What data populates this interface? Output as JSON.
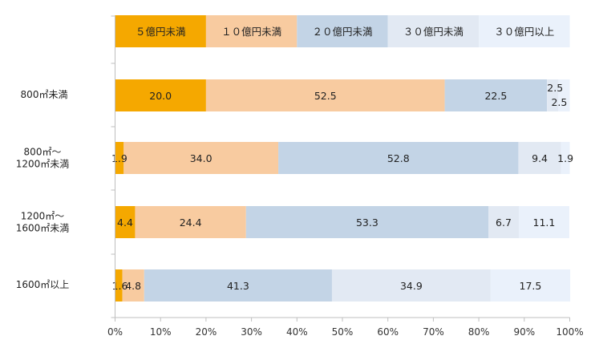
{
  "chart_data": {
    "type": "bar",
    "orientation": "horizontal",
    "stacked": true,
    "categories": [
      "800㎡未満",
      "800㎡～\n1200㎡未満",
      "1200㎡～\n1600㎡未満",
      "1600㎡以上"
    ],
    "series": [
      {
        "name": "５億円未満",
        "color": "#F5A800",
        "values": [
          20.0,
          1.9,
          4.4,
          1.6
        ]
      },
      {
        "name": "１０億円未満",
        "color": "#F8CBA0",
        "values": [
          52.5,
          34.0,
          24.4,
          4.8
        ]
      },
      {
        "name": "２０億円未満",
        "color": "#C3D4E6",
        "values": [
          22.5,
          52.8,
          53.3,
          41.3
        ]
      },
      {
        "name": "３０億円未満",
        "color": "#E2E9F3",
        "values": [
          2.5,
          9.4,
          6.7,
          34.9
        ]
      },
      {
        "name": "３０億円以上",
        "color": "#EAF1FB",
        "values": [
          2.5,
          1.9,
          11.1,
          17.5
        ]
      }
    ],
    "value_labels": [
      [
        "20.0",
        "52.5",
        "22.5",
        "2.5",
        "2.5"
      ],
      [
        "1.9",
        "34.0",
        "52.8",
        "9.4",
        "1.9"
      ],
      [
        "4.4",
        "24.4",
        "53.3",
        "6.7",
        "11.1"
      ],
      [
        "1.6",
        "4.8",
        "41.3",
        "34.9",
        "17.5"
      ]
    ],
    "xlim": [
      0,
      100
    ],
    "x_ticks": [
      "0%",
      "10%",
      "20%",
      "30%",
      "40%",
      "50%",
      "60%",
      "70%",
      "80%",
      "90%",
      "100%"
    ],
    "legend_position": "top, as a stacked bar at 0–100%",
    "grid": false
  }
}
